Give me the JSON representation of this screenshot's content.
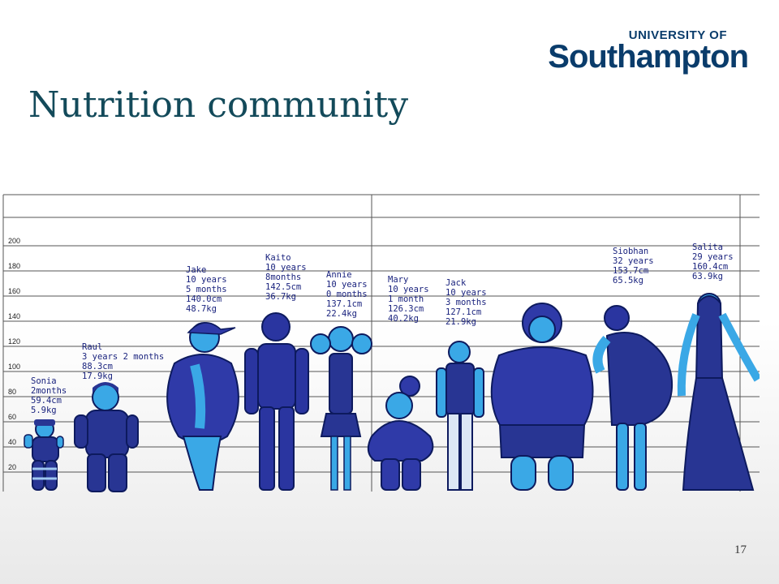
{
  "logo": {
    "university_of": "UNIVERSITY OF",
    "name": "Southampton"
  },
  "title": "Nutrition community",
  "page_number": "17",
  "scale": {
    "ticks": [
      "200",
      "180",
      "160",
      "140",
      "120",
      "100",
      "80",
      "60",
      "40",
      "20"
    ]
  },
  "people": [
    {
      "name": "Sonia",
      "age": "2months",
      "height": "59.4cm",
      "weight": "5.9kg",
      "height_cm": 59.4,
      "color": "#283593"
    },
    {
      "name": "Raul",
      "age": "3 years 2 months",
      "height": "88.3cm",
      "weight": "17.9kg",
      "height_cm": 88.3,
      "color": "#283593"
    },
    {
      "name": "Jake",
      "age": "10 years",
      "age2": "5 months",
      "height": "140.0cm",
      "weight": "48.7kg",
      "height_cm": 140.0,
      "color": "#2f3aa8"
    },
    {
      "name": "Kaito",
      "age": "10 years",
      "age2": "8months",
      "height": "142.5cm",
      "weight": "36.7kg",
      "height_cm": 142.5,
      "color": "#2a35a0"
    },
    {
      "name": "Annie",
      "age": "10 years",
      "age2": "0 months",
      "height": "137.1cm",
      "weight": "22.4kg",
      "height_cm": 137.1,
      "color": "#283593"
    },
    {
      "name": "Mary",
      "age": "10 years",
      "age2": "1 month",
      "height": "126.3cm",
      "weight": "40.2kg",
      "height_cm": 126.3,
      "color": "#2f3aa8"
    },
    {
      "name": "Jack",
      "age": "10 years",
      "age2": "3 months",
      "height": "127.1cm",
      "weight": "21.9kg",
      "height_cm": 127.1,
      "color": "#283593"
    },
    {
      "name": "Siobhan",
      "age": "32 years",
      "height": "153.7cm",
      "weight": "65.5kg",
      "height_cm": 153.7,
      "color": "#283593"
    },
    {
      "name": "Salita",
      "age": "29 years",
      "height": "160.4cm",
      "weight": "63.9kg",
      "height_cm": 160.4,
      "color": "#283593"
    }
  ],
  "colors": {
    "skin": "#3aa8e6",
    "outline": "#0d1a5e",
    "grid": "#555555"
  }
}
